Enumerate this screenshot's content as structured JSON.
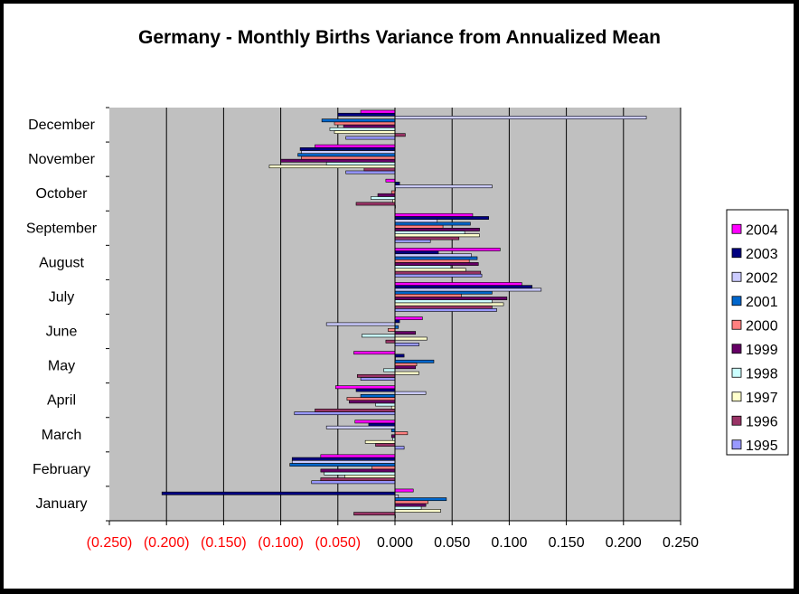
{
  "chart_data": {
    "type": "bar",
    "orientation": "horizontal",
    "title": "Germany - Monthly Births Variance from Annualized Mean",
    "xlabel": "",
    "ylabel": "",
    "xlim": [
      -0.25,
      0.25
    ],
    "x_ticks": [
      -0.25,
      -0.2,
      -0.15,
      -0.1,
      -0.05,
      0,
      0.05,
      0.1,
      0.15,
      0.2,
      0.25
    ],
    "x_tick_labels": [
      "(0.250)",
      "(0.200)",
      "(0.150)",
      "(0.100)",
      "(0.050)",
      "0.000",
      "0.050",
      "0.100",
      "0.150",
      "0.200",
      "0.250"
    ],
    "negative_label_color": "#ff0000",
    "grid": true,
    "plot_background": "#c0c0c0",
    "legend_position": "right",
    "categories": [
      "January",
      "February",
      "March",
      "April",
      "May",
      "June",
      "July",
      "August",
      "September",
      "October",
      "November",
      "December"
    ],
    "series": [
      {
        "name": "1995",
        "color": "#9999ff",
        "values": [
          0.0,
          -0.073,
          0.008,
          -0.088,
          -0.03,
          0.021,
          0.089,
          0.076,
          0.031,
          0.0,
          -0.043,
          -0.043
        ]
      },
      {
        "name": "1996",
        "color": "#993366",
        "values": [
          -0.036,
          -0.065,
          -0.017,
          -0.07,
          -0.033,
          -0.008,
          0.085,
          0.075,
          0.056,
          -0.034,
          -0.027,
          0.009
        ]
      },
      {
        "name": "1997",
        "color": "#ffffcc",
        "values": [
          0.04,
          -0.044,
          -0.026,
          -0.003,
          0.021,
          0.028,
          0.095,
          0.062,
          0.074,
          -0.002,
          -0.11,
          -0.053
        ]
      },
      {
        "name": "1998",
        "color": "#ccffff",
        "values": [
          0.023,
          -0.062,
          -0.002,
          -0.017,
          -0.01,
          -0.029,
          0.085,
          0.049,
          0.061,
          -0.021,
          -0.06,
          -0.057
        ]
      },
      {
        "name": "1999",
        "color": "#660066",
        "values": [
          0.027,
          -0.065,
          -0.003,
          -0.04,
          0.018,
          0.018,
          0.098,
          0.073,
          0.074,
          -0.015,
          -0.1,
          -0.045
        ]
      },
      {
        "name": "2000",
        "color": "#ff8080",
        "values": [
          0.029,
          -0.02,
          0.011,
          -0.042,
          0.019,
          -0.006,
          0.058,
          0.065,
          0.042,
          -0.003,
          -0.082,
          -0.053
        ]
      },
      {
        "name": "2001",
        "color": "#0066cc",
        "values": [
          0.045,
          -0.092,
          -0.003,
          -0.03,
          0.034,
          0.003,
          0.085,
          0.072,
          0.066,
          0.0,
          -0.085,
          -0.064
        ]
      },
      {
        "name": "2002",
        "color": "#ccccff",
        "values": [
          0.003,
          -0.09,
          -0.06,
          0.027,
          0.0,
          -0.06,
          0.128,
          0.067,
          0.037,
          0.085,
          -0.082,
          0.22
        ]
      },
      {
        "name": "2003",
        "color": "#000080",
        "values": [
          -0.204,
          -0.09,
          -0.023,
          -0.034,
          0.008,
          0.004,
          0.12,
          0.038,
          0.082,
          0.004,
          -0.083,
          -0.05
        ]
      },
      {
        "name": "2004",
        "color": "#ff00ff",
        "values": [
          0.016,
          -0.065,
          -0.035,
          -0.052,
          -0.036,
          0.024,
          0.111,
          0.092,
          0.068,
          -0.008,
          -0.07,
          -0.03
        ]
      }
    ]
  }
}
